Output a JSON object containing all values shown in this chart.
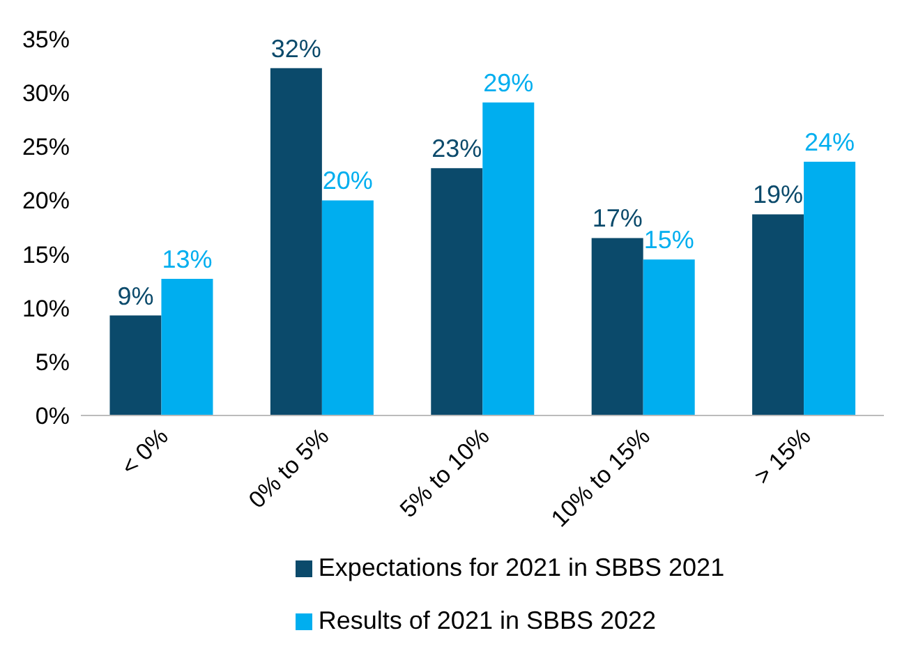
{
  "chart_data": {
    "type": "bar",
    "categories": [
      "< 0%",
      "0% to 5%",
      "5% to 10%",
      "10% to 15%",
      "> 15%"
    ],
    "series": [
      {
        "name": "Expectations for 2021 in SBBS 2021",
        "color": "#0b4a6b",
        "values": [
          9.3,
          32.3,
          23,
          16.5,
          18.7
        ],
        "value_labels": [
          "9%",
          "32%",
          "23%",
          "17%",
          "19%"
        ]
      },
      {
        "name": "Results of 2021 in SBBS 2022",
        "color": "#00aeef",
        "values": [
          12.7,
          20,
          29.1,
          14.5,
          23.6
        ],
        "value_labels": [
          "13%",
          "20%",
          "29%",
          "15%",
          "24%"
        ]
      }
    ],
    "ylim": [
      0,
      35
    ],
    "yticks": [
      {
        "value": 0,
        "label": "0%"
      },
      {
        "value": 5,
        "label": "5%"
      },
      {
        "value": 10,
        "label": "10%"
      },
      {
        "value": 15,
        "label": "15%"
      },
      {
        "value": 20,
        "label": "20%"
      },
      {
        "value": 25,
        "label": "25%"
      },
      {
        "value": 30,
        "label": "30%"
      },
      {
        "value": 35,
        "label": "35%"
      }
    ],
    "grid": false,
    "legend": "bottom"
  }
}
